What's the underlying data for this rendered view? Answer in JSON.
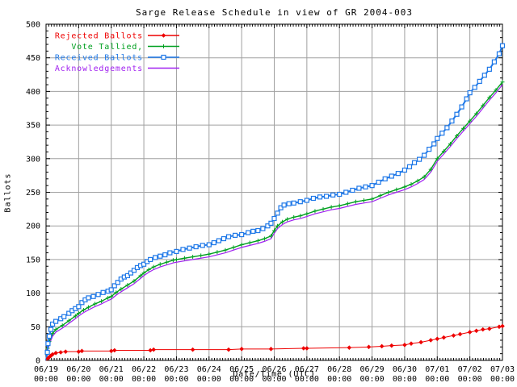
{
  "colors": {
    "background": "#ffffff",
    "grid": "#a0a0a0",
    "axis": "#000000",
    "rejected": "#ee0000",
    "tallied": "#00a020",
    "received": "#1e78e8",
    "acknowledgements": "#a020f0"
  },
  "chart_data": {
    "type": "line",
    "title": "Sarge Release Schedule in view of GR 2004-003",
    "xlabel": "Date/Time (UTC)",
    "ylabel": "Ballots",
    "ylim": [
      0,
      500
    ],
    "y_ticks": [
      0,
      50,
      100,
      150,
      200,
      250,
      300,
      350,
      400,
      450,
      500
    ],
    "x_days_span": 14,
    "x_ticks": [
      {
        "date": "06/19",
        "time": "00:00"
      },
      {
        "date": "06/20",
        "time": "00:00"
      },
      {
        "date": "06/21",
        "time": "00:00"
      },
      {
        "date": "06/22",
        "time": "00:00"
      },
      {
        "date": "06/23",
        "time": "00:00"
      },
      {
        "date": "06/24",
        "time": "00:00"
      },
      {
        "date": "06/25",
        "time": "00:00"
      },
      {
        "date": "06/26",
        "time": "00:00"
      },
      {
        "date": "06/27",
        "time": "00:00"
      },
      {
        "date": "06/28",
        "time": "00:00"
      },
      {
        "date": "06/29",
        "time": "00:00"
      },
      {
        "date": "06/30",
        "time": "00:00"
      },
      {
        "date": "07/01",
        "time": "00:00"
      },
      {
        "date": "07/02",
        "time": "00:00"
      },
      {
        "date": "07/03",
        "time": "00:00"
      }
    ],
    "grid": true,
    "legend_position": "top-left",
    "series": [
      {
        "name": "Rejected Ballots",
        "color": "#ee0000",
        "marker": "diamond",
        "line_width": 1,
        "points": [
          [
            0,
            0
          ],
          [
            0.06,
            3
          ],
          [
            0.1,
            5
          ],
          [
            0.15,
            7
          ],
          [
            0.2,
            9
          ],
          [
            0.3,
            11
          ],
          [
            0.45,
            12
          ],
          [
            0.6,
            13
          ],
          [
            1,
            13
          ],
          [
            1.1,
            14
          ],
          [
            2,
            14
          ],
          [
            2.1,
            15
          ],
          [
            3.2,
            15
          ],
          [
            3.3,
            16
          ],
          [
            4.5,
            16
          ],
          [
            5.6,
            16
          ],
          [
            6,
            17
          ],
          [
            6.9,
            17
          ],
          [
            7.9,
            18
          ],
          [
            8,
            18
          ],
          [
            9.3,
            19
          ],
          [
            9.9,
            20
          ],
          [
            10.3,
            21
          ],
          [
            10.6,
            22
          ],
          [
            11,
            23
          ],
          [
            11.2,
            25
          ],
          [
            11.5,
            27
          ],
          [
            11.8,
            30
          ],
          [
            12,
            32
          ],
          [
            12.2,
            34
          ],
          [
            12.5,
            37
          ],
          [
            12.7,
            39
          ],
          [
            13,
            42
          ],
          [
            13.2,
            44
          ],
          [
            13.4,
            46
          ],
          [
            13.6,
            47
          ],
          [
            13.9,
            50
          ],
          [
            14,
            51
          ]
        ]
      },
      {
        "name": "Vote Tallied,",
        "color": "#00a020",
        "marker": "plus",
        "line_width": 1.4,
        "points": [
          [
            0,
            0
          ],
          [
            0.05,
            18
          ],
          [
            0.1,
            28
          ],
          [
            0.2,
            40
          ],
          [
            0.3,
            46
          ],
          [
            0.5,
            52
          ],
          [
            0.7,
            59
          ],
          [
            0.9,
            66
          ],
          [
            1,
            70
          ],
          [
            1.15,
            75
          ],
          [
            1.3,
            79
          ],
          [
            1.5,
            84
          ],
          [
            1.7,
            88
          ],
          [
            1.9,
            93
          ],
          [
            2,
            95
          ],
          [
            2.15,
            101
          ],
          [
            2.3,
            106
          ],
          [
            2.5,
            112
          ],
          [
            2.7,
            118
          ],
          [
            2.9,
            126
          ],
          [
            3,
            130
          ],
          [
            3.15,
            135
          ],
          [
            3.3,
            139
          ],
          [
            3.5,
            143
          ],
          [
            3.7,
            146
          ],
          [
            3.9,
            149
          ],
          [
            4,
            150
          ],
          [
            4.25,
            152
          ],
          [
            4.5,
            154
          ],
          [
            4.75,
            156
          ],
          [
            5,
            158
          ],
          [
            5.25,
            161
          ],
          [
            5.5,
            164
          ],
          [
            5.75,
            168
          ],
          [
            6,
            172
          ],
          [
            6.25,
            175
          ],
          [
            6.5,
            178
          ],
          [
            6.7,
            181
          ],
          [
            6.9,
            185
          ],
          [
            7,
            193
          ],
          [
            7.1,
            200
          ],
          [
            7.25,
            206
          ],
          [
            7.4,
            210
          ],
          [
            7.6,
            213
          ],
          [
            7.8,
            215
          ],
          [
            8,
            218
          ],
          [
            8.25,
            222
          ],
          [
            8.5,
            225
          ],
          [
            8.75,
            228
          ],
          [
            9,
            230
          ],
          [
            9.25,
            233
          ],
          [
            9.5,
            236
          ],
          [
            9.75,
            238
          ],
          [
            10,
            240
          ],
          [
            10.25,
            245
          ],
          [
            10.5,
            250
          ],
          [
            10.75,
            254
          ],
          [
            11,
            258
          ],
          [
            11.2,
            262
          ],
          [
            11.4,
            267
          ],
          [
            11.6,
            273
          ],
          [
            11.8,
            284
          ],
          [
            12,
            300
          ],
          [
            12.2,
            311
          ],
          [
            12.4,
            322
          ],
          [
            12.6,
            334
          ],
          [
            12.8,
            345
          ],
          [
            13,
            356
          ],
          [
            13.2,
            367
          ],
          [
            13.4,
            379
          ],
          [
            13.6,
            391
          ],
          [
            13.8,
            402
          ],
          [
            14,
            414
          ]
        ]
      },
      {
        "name": "Received Ballots",
        "color": "#1e78e8",
        "marker": "square-open",
        "line_width": 2,
        "points": [
          [
            0,
            0
          ],
          [
            0.04,
            12
          ],
          [
            0.06,
            25
          ],
          [
            0.1,
            36
          ],
          [
            0.15,
            46
          ],
          [
            0.2,
            54
          ],
          [
            0.3,
            58
          ],
          [
            0.45,
            62
          ],
          [
            0.55,
            65
          ],
          [
            0.7,
            70
          ],
          [
            0.8,
            74
          ],
          [
            0.9,
            77
          ],
          [
            1,
            80
          ],
          [
            1.1,
            86
          ],
          [
            1.2,
            90
          ],
          [
            1.3,
            93
          ],
          [
            1.45,
            95
          ],
          [
            1.6,
            98
          ],
          [
            1.75,
            101
          ],
          [
            1.9,
            103
          ],
          [
            2,
            105
          ],
          [
            2.1,
            111
          ],
          [
            2.2,
            116
          ],
          [
            2.3,
            121
          ],
          [
            2.4,
            124
          ],
          [
            2.5,
            126
          ],
          [
            2.6,
            130
          ],
          [
            2.7,
            134
          ],
          [
            2.8,
            138
          ],
          [
            2.9,
            141
          ],
          [
            3,
            143
          ],
          [
            3.1,
            147
          ],
          [
            3.2,
            150
          ],
          [
            3.35,
            153
          ],
          [
            3.5,
            155
          ],
          [
            3.65,
            157
          ],
          [
            3.8,
            160
          ],
          [
            4,
            162
          ],
          [
            4.2,
            165
          ],
          [
            4.4,
            167
          ],
          [
            4.6,
            169
          ],
          [
            4.8,
            171
          ],
          [
            5,
            172
          ],
          [
            5.15,
            175
          ],
          [
            5.3,
            178
          ],
          [
            5.45,
            181
          ],
          [
            5.6,
            184
          ],
          [
            5.8,
            186
          ],
          [
            6,
            187
          ],
          [
            6.2,
            190
          ],
          [
            6.35,
            192
          ],
          [
            6.5,
            193
          ],
          [
            6.65,
            196
          ],
          [
            6.8,
            200
          ],
          [
            6.9,
            204
          ],
          [
            7,
            211
          ],
          [
            7.1,
            219
          ],
          [
            7.2,
            227
          ],
          [
            7.3,
            231
          ],
          [
            7.45,
            233
          ],
          [
            7.6,
            234
          ],
          [
            7.8,
            236
          ],
          [
            8,
            238
          ],
          [
            8.2,
            241
          ],
          [
            8.4,
            243
          ],
          [
            8.6,
            244
          ],
          [
            8.8,
            246
          ],
          [
            9,
            247
          ],
          [
            9.2,
            250
          ],
          [
            9.4,
            253
          ],
          [
            9.6,
            256
          ],
          [
            9.8,
            258
          ],
          [
            10,
            260
          ],
          [
            10.2,
            265
          ],
          [
            10.4,
            270
          ],
          [
            10.6,
            274
          ],
          [
            10.8,
            278
          ],
          [
            11,
            283
          ],
          [
            11.15,
            288
          ],
          [
            11.3,
            294
          ],
          [
            11.45,
            299
          ],
          [
            11.6,
            305
          ],
          [
            11.75,
            314
          ],
          [
            11.9,
            322
          ],
          [
            12,
            330
          ],
          [
            12.15,
            338
          ],
          [
            12.3,
            346
          ],
          [
            12.45,
            356
          ],
          [
            12.6,
            366
          ],
          [
            12.75,
            377
          ],
          [
            12.9,
            389
          ],
          [
            13,
            398
          ],
          [
            13.15,
            406
          ],
          [
            13.3,
            415
          ],
          [
            13.45,
            424
          ],
          [
            13.6,
            433
          ],
          [
            13.75,
            444
          ],
          [
            13.9,
            456
          ],
          [
            14,
            468
          ]
        ]
      },
      {
        "name": "Acknowledgements",
        "color": "#a020f0",
        "marker": "none",
        "line_width": 1.2,
        "points": [
          [
            0,
            0
          ],
          [
            0.05,
            15
          ],
          [
            0.1,
            24
          ],
          [
            0.2,
            36
          ],
          [
            0.3,
            42
          ],
          [
            0.5,
            48
          ],
          [
            0.7,
            55
          ],
          [
            0.9,
            62
          ],
          [
            1,
            66
          ],
          [
            1.15,
            71
          ],
          [
            1.3,
            75
          ],
          [
            1.5,
            80
          ],
          [
            1.7,
            84
          ],
          [
            1.9,
            89
          ],
          [
            2,
            91
          ],
          [
            2.15,
            97
          ],
          [
            2.3,
            102
          ],
          [
            2.5,
            108
          ],
          [
            2.7,
            114
          ],
          [
            2.9,
            122
          ],
          [
            3,
            126
          ],
          [
            3.15,
            131
          ],
          [
            3.3,
            135
          ],
          [
            3.5,
            139
          ],
          [
            3.7,
            142
          ],
          [
            3.9,
            145
          ],
          [
            4,
            146
          ],
          [
            4.25,
            148
          ],
          [
            4.5,
            150
          ],
          [
            4.75,
            152
          ],
          [
            5,
            154
          ],
          [
            5.25,
            157
          ],
          [
            5.5,
            160
          ],
          [
            5.75,
            164
          ],
          [
            6,
            168
          ],
          [
            6.25,
            171
          ],
          [
            6.5,
            174
          ],
          [
            6.7,
            177
          ],
          [
            6.9,
            181
          ],
          [
            7,
            189
          ],
          [
            7.1,
            196
          ],
          [
            7.25,
            202
          ],
          [
            7.4,
            206
          ],
          [
            7.6,
            209
          ],
          [
            7.8,
            211
          ],
          [
            8,
            214
          ],
          [
            8.25,
            218
          ],
          [
            8.5,
            221
          ],
          [
            8.75,
            224
          ],
          [
            9,
            226
          ],
          [
            9.25,
            229
          ],
          [
            9.5,
            232
          ],
          [
            9.75,
            234
          ],
          [
            10,
            236
          ],
          [
            10.25,
            241
          ],
          [
            10.5,
            246
          ],
          [
            10.75,
            250
          ],
          [
            11,
            254
          ],
          [
            11.2,
            258
          ],
          [
            11.4,
            263
          ],
          [
            11.6,
            269
          ],
          [
            11.8,
            280
          ],
          [
            12,
            296
          ],
          [
            12.2,
            307
          ],
          [
            12.4,
            318
          ],
          [
            12.6,
            330
          ],
          [
            12.8,
            341
          ],
          [
            13,
            352
          ],
          [
            13.2,
            363
          ],
          [
            13.4,
            375
          ],
          [
            13.6,
            387
          ],
          [
            13.8,
            398
          ],
          [
            14,
            410
          ]
        ]
      }
    ]
  }
}
